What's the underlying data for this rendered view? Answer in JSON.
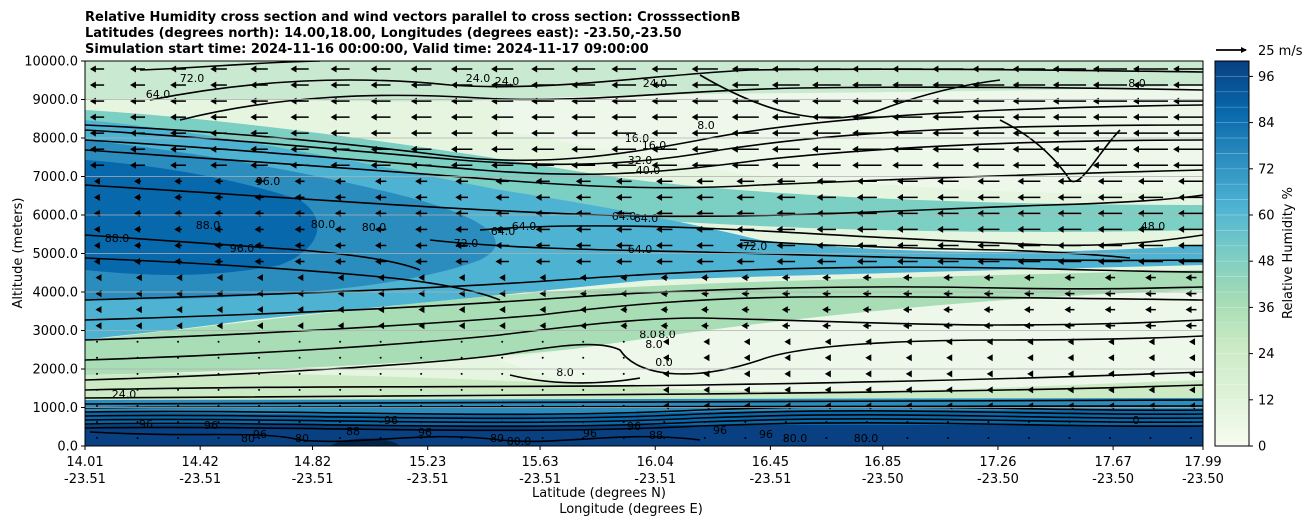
{
  "chart_data": {
    "type": "contour",
    "title_lines": [
      "Relative Humidity cross section and wind vectors parallel to cross section: CrosssectionB",
      "Latitudes (degrees north): 14.00,18.00, Longitudes (degrees east): -23.50,-23.50",
      "Simulation start time: 2024-11-16 00:00:00, Valid time: 2024-11-17 09:00:00"
    ],
    "ylabel": "Altitude (meters)",
    "xlabel_lat": "Latitude (degrees N)",
    "xlabel_lon": "Longitude (degrees E)",
    "ylim": [
      0,
      10000
    ],
    "yticks": [
      "0.0",
      "1000.0",
      "2000.0",
      "3000.0",
      "4000.0",
      "5000.0",
      "6000.0",
      "7000.0",
      "8000.0",
      "9000.0",
      "10000.0"
    ],
    "xticks": [
      {
        "lat": "14.01",
        "lon": "-23.51"
      },
      {
        "lat": "14.42",
        "lon": "-23.51"
      },
      {
        "lat": "14.82",
        "lon": "-23.51"
      },
      {
        "lat": "15.23",
        "lon": "-23.51"
      },
      {
        "lat": "15.63",
        "lon": "-23.51"
      },
      {
        "lat": "16.04",
        "lon": "-23.51"
      },
      {
        "lat": "16.45",
        "lon": "-23.51"
      },
      {
        "lat": "16.85",
        "lon": "-23.50"
      },
      {
        "lat": "17.26",
        "lon": "-23.50"
      },
      {
        "lat": "17.67",
        "lon": "-23.50"
      },
      {
        "lat": "17.99",
        "lon": "-23.50"
      }
    ],
    "grid": "horizontal",
    "colormap": "GnBu",
    "colorbar": {
      "label": "Relative Humidity %",
      "ticks": [
        "0",
        "12",
        "24",
        "36",
        "48",
        "60",
        "72",
        "84",
        "96"
      ],
      "levels": [
        0,
        4,
        8,
        12,
        16,
        20,
        24,
        28,
        32,
        36,
        40,
        44,
        48,
        52,
        56,
        60,
        64,
        68,
        72,
        76,
        80,
        84,
        88,
        92,
        96,
        100
      ]
    },
    "quiver_key": {
      "value": 25,
      "label": "25 m/s",
      "position": "top-right"
    },
    "contour_labels": [
      "72.0",
      "64.0",
      "24.0",
      "24.0",
      "24.0",
      "8.0",
      "16.0",
      "16.0",
      "32.0",
      "40.0",
      "96.0",
      "88.0",
      "88.0",
      "96.0",
      "80.0",
      "80.0",
      "64.0",
      "64.0",
      "72.0",
      "64.0",
      "64.0",
      "64.0",
      "72.0",
      "48.0",
      "8.0",
      "8.0",
      "8.0",
      "8.0",
      "0.0",
      "24.0",
      "8.0",
      "96",
      "96",
      "96",
      "80",
      "80",
      "88",
      "96",
      "96",
      "80",
      "80.0",
      "96",
      "96",
      "88",
      "96",
      "96",
      "80.0",
      "80.0",
      "0"
    ],
    "wind_direction": "southward (toward lower latitude) aloft, weak below 3000 m"
  }
}
